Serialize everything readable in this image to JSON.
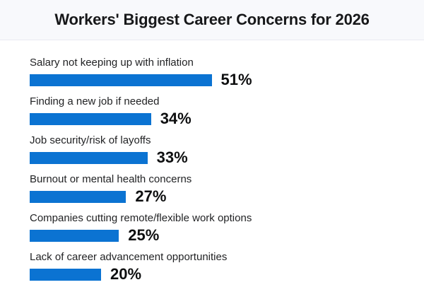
{
  "chart_data": {
    "type": "bar",
    "orientation": "horizontal",
    "title": "Workers' Biggest Career Concerns for 2026",
    "categories": [
      "Salary not keeping up with inflation",
      "Finding a new job if needed",
      "Job security/risk of layoffs",
      "Burnout or mental health concerns",
      "Companies cutting remote/flexible work options",
      "Lack of career advancement opportunities"
    ],
    "values": [
      51,
      34,
      33,
      27,
      25,
      20
    ],
    "value_labels": [
      "51%",
      "34%",
      "33%",
      "27%",
      "25%",
      "20%"
    ],
    "value_suffix": "%",
    "xlabel": "",
    "ylabel": "",
    "xlim": [
      0,
      55
    ],
    "grid": false,
    "legend": "none",
    "value_label_position": "right-of-bar"
  },
  "colors": {
    "bar": "#0b73d2",
    "header_background": "#f8f9fc",
    "header_border": "#e9ebf2",
    "title_text": "#17181a",
    "label_text": "#222325",
    "value_text": "#0e0f10",
    "background": "#ffffff"
  }
}
